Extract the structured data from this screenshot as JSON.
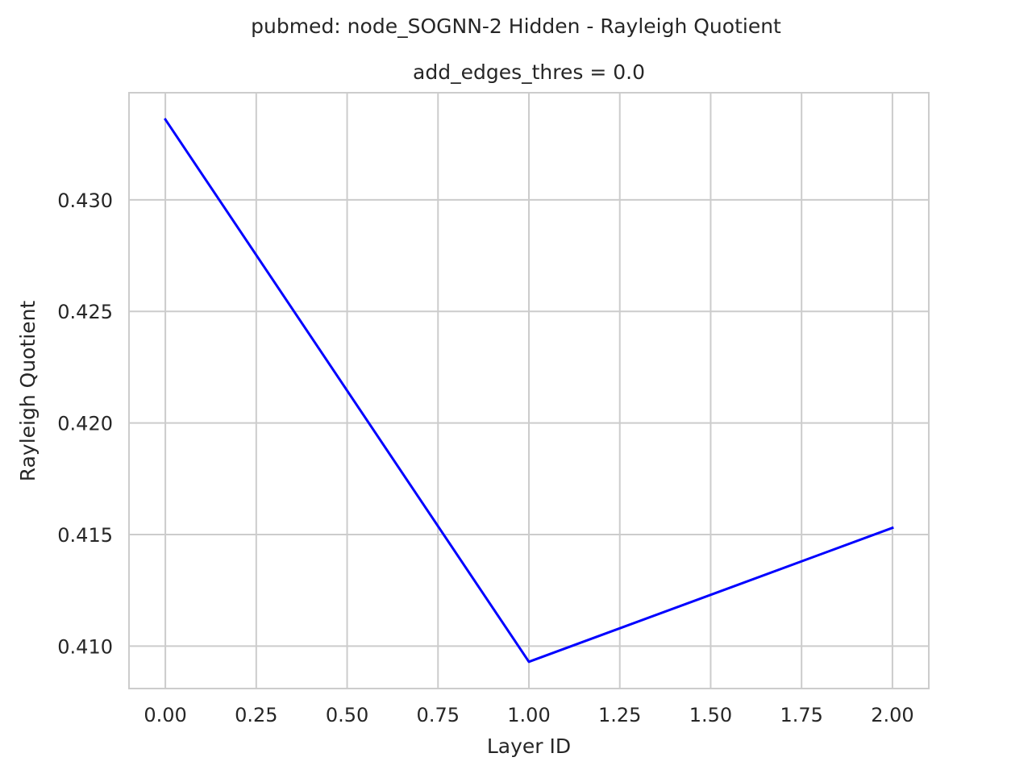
{
  "chart_data": {
    "type": "line",
    "suptitle": "pubmed: node_SOGNN-2 Hidden - Rayleigh Quotient",
    "title": "add_edges_thres = 0.0",
    "xlabel": "Layer ID",
    "ylabel": "Rayleigh Quotient",
    "xlim": [
      -0.1,
      2.1
    ],
    "ylim": [
      0.4081,
      0.4348
    ],
    "x_ticks": [
      0.0,
      0.25,
      0.5,
      0.75,
      1.0,
      1.25,
      1.5,
      1.75,
      2.0
    ],
    "x_tick_labels": [
      "0.00",
      "0.25",
      "0.50",
      "0.75",
      "1.00",
      "1.25",
      "1.50",
      "1.75",
      "2.00"
    ],
    "y_ticks": [
      0.41,
      0.415,
      0.42,
      0.425,
      0.43
    ],
    "y_tick_labels": [
      "0.410",
      "0.415",
      "0.420",
      "0.425",
      "0.430"
    ],
    "grid": true,
    "series": [
      {
        "color": "#0000ff",
        "x": [
          0,
          1,
          2
        ],
        "y": [
          0.4336,
          0.4093,
          0.4153
        ]
      }
    ]
  }
}
